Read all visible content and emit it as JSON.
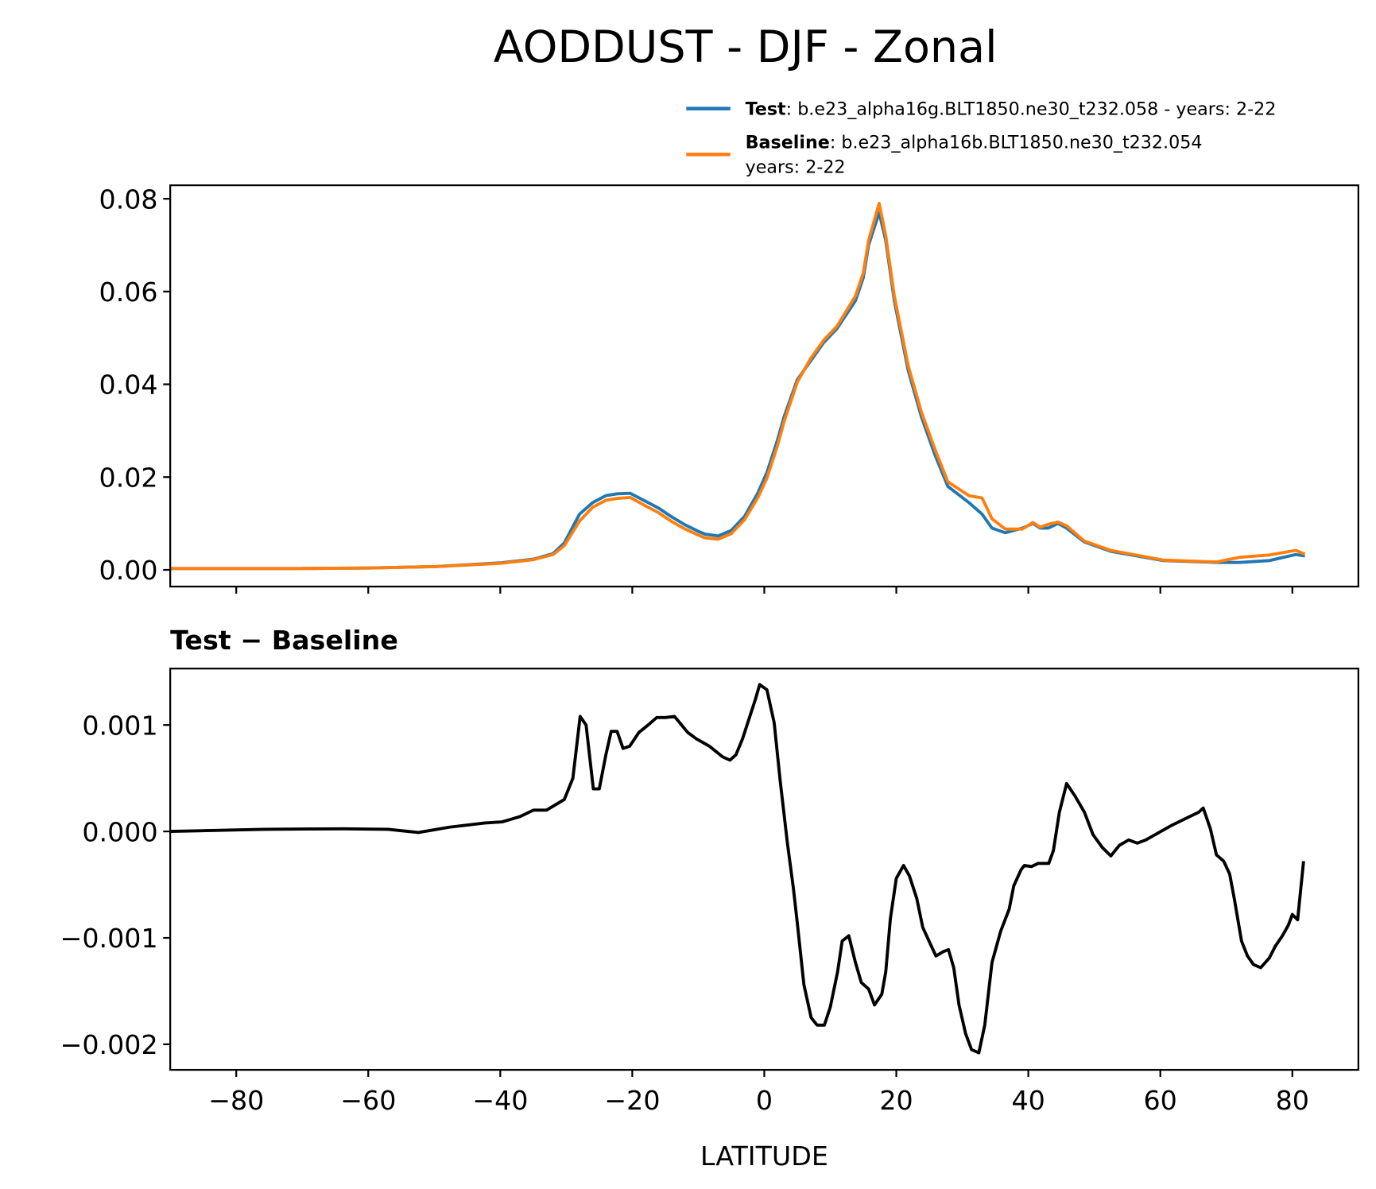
{
  "chart_data": [
    {
      "type": "line",
      "title": "AODDUST - DJF - Zonal",
      "x": [
        -90,
        -80,
        -70,
        -60,
        -50,
        -40,
        -35,
        -32,
        -30.3,
        -28,
        -26,
        -24,
        -22.3,
        -20.3,
        -18,
        -16,
        -14,
        -12,
        -10,
        -9,
        -7,
        -5,
        -3,
        -1,
        0.4,
        2,
        3,
        5,
        7,
        9,
        11,
        13.8,
        15,
        15.8,
        17.4,
        18.4,
        19.7,
        21.8,
        23.8,
        25.8,
        27.8,
        31,
        33,
        34.5,
        36.5,
        39.1,
        40.7,
        41.8,
        43,
        44.5,
        45.8,
        48.5,
        52.5,
        60.5,
        68.5,
        72,
        76.5,
        80.5,
        81.9
      ],
      "series": [
        {
          "name": "Test",
          "label_lines": [
            ": b.e23_alpha16g.BLT1850.ne30_t232.058 - years: 2-22"
          ],
          "color": "#1f77b4",
          "values": [
            0.0003,
            0.0003,
            0.0003,
            0.0004,
            0.0007,
            0.0015,
            0.0023,
            0.0035,
            0.0058,
            0.012,
            0.0145,
            0.016,
            0.0164,
            0.0165,
            0.0148,
            0.0133,
            0.0114,
            0.0097,
            0.0083,
            0.0077,
            0.0073,
            0.0085,
            0.0115,
            0.0165,
            0.021,
            0.028,
            0.033,
            0.041,
            0.045,
            0.049,
            0.052,
            0.058,
            0.063,
            0.07,
            0.077,
            0.071,
            0.058,
            0.043,
            0.033,
            0.025,
            0.018,
            0.0145,
            0.012,
            0.009,
            0.008,
            0.009,
            0.01,
            0.009,
            0.009,
            0.01,
            0.009,
            0.006,
            0.004,
            0.002,
            0.0016,
            0.0016,
            0.002,
            0.0033,
            0.003
          ]
        },
        {
          "name": "Baseline",
          "label_lines": [
            ": b.e23_alpha16b.BLT1850.ne30_t232.054",
            "years: 2-22"
          ],
          "color": "#ff7f0e",
          "values": [
            0.0003,
            0.0003,
            0.0003,
            0.0004,
            0.0007,
            0.0014,
            0.0022,
            0.0033,
            0.0052,
            0.0105,
            0.0135,
            0.015,
            0.0154,
            0.0156,
            0.0138,
            0.0123,
            0.0104,
            0.0088,
            0.0075,
            0.0069,
            0.0066,
            0.0078,
            0.0108,
            0.0155,
            0.0198,
            0.0268,
            0.032,
            0.0405,
            0.0455,
            0.0495,
            0.0525,
            0.059,
            0.064,
            0.071,
            0.079,
            0.072,
            0.059,
            0.044,
            0.034,
            0.0262,
            0.019,
            0.016,
            0.0155,
            0.011,
            0.0088,
            0.0088,
            0.0102,
            0.0092,
            0.0098,
            0.0103,
            0.0095,
            0.0062,
            0.0042,
            0.0021,
            0.0017,
            0.0027,
            0.0032,
            0.0042,
            0.0034
          ]
        }
      ],
      "xlim": [
        -90,
        90
      ],
      "xticks": [
        {
          "value": -80,
          "label": "−80"
        },
        {
          "value": -60,
          "label": "−60"
        },
        {
          "value": -40,
          "label": "−40"
        },
        {
          "value": -20,
          "label": "−20"
        },
        0,
        20,
        40,
        60,
        80
      ],
      "ylim": [
        -0.0036,
        0.0829
      ],
      "yticks": [
        {
          "value": 0,
          "label": "0.00"
        },
        0.02,
        0.04,
        0.06,
        0.08
      ],
      "legend": "upper right"
    },
    {
      "type": "line",
      "subtitle": "Test − Baseline",
      "xlabel": "LATITUDE",
      "x": [
        -90,
        -75.7,
        -63.7,
        -57,
        -52.4,
        -47.7,
        -42.3,
        -39.7,
        -37,
        -35,
        -33,
        -30.3,
        -29,
        -27.9,
        -27,
        -25.9,
        -25,
        -24,
        -23.2,
        -22.3,
        -21.4,
        -20.4,
        -19,
        -17.6,
        -16.3,
        -15,
        -13.6,
        -11.6,
        -10.3,
        -8.3,
        -6.3,
        -5.2,
        -4.3,
        -3.3,
        -2.3,
        -1.3,
        -0.7,
        0.4,
        1.5,
        2.4,
        3.5,
        4.4,
        5,
        6,
        7.1,
        8,
        9.1,
        10,
        11.1,
        11.8,
        12.8,
        13.8,
        14.7,
        15.8,
        16.7,
        17.8,
        18.4,
        19.1,
        20,
        21.1,
        22,
        23.1,
        24,
        25.1,
        26,
        27.1,
        27.9,
        28.7,
        29.5,
        30.5,
        31.4,
        32.5,
        33.4,
        34.5,
        35.8,
        37.1,
        37.8,
        38.9,
        39.4,
        40.5,
        41.5,
        43.1,
        43.8,
        44.7,
        45.8,
        47.1,
        48.5,
        49.8,
        51.2,
        52.5,
        53.8,
        55.2,
        56.5,
        57.8,
        59.8,
        61.8,
        63.8,
        65.8,
        66.5,
        67.6,
        68.5,
        69.6,
        70.5,
        71.2,
        72.3,
        73.2,
        74.1,
        75.2,
        76.5,
        77.4,
        78.5,
        79.4,
        80,
        80.8,
        81.7
      ],
      "series": [
        {
          "name": "Test − Baseline",
          "color": "#000000",
          "values": [
            0,
            2e-05,
            2.5e-05,
            2e-05,
            -1e-05,
            4e-05,
            8e-05,
            9e-05,
            0.00014,
            0.0002,
            0.0002,
            0.0003,
            0.0005,
            0.00108,
            0.001,
            0.0004,
            0.0004,
            0.00072,
            0.00094,
            0.00094,
            0.00078,
            0.0008,
            0.00093,
            0.001,
            0.00107,
            0.00107,
            0.00108,
            0.00093,
            0.00087,
            0.0008,
            0.0007,
            0.00067,
            0.00072,
            0.00087,
            0.00106,
            0.00125,
            0.00138,
            0.00133,
            0.00102,
            0.00048,
            -0.00011,
            -0.00053,
            -0.00086,
            -0.00144,
            -0.00175,
            -0.00182,
            -0.00182,
            -0.00165,
            -0.00132,
            -0.00103,
            -0.00098,
            -0.00123,
            -0.00142,
            -0.00148,
            -0.00163,
            -0.00153,
            -0.00132,
            -0.00082,
            -0.00044,
            -0.00032,
            -0.00042,
            -0.00063,
            -0.0009,
            -0.00105,
            -0.00117,
            -0.00113,
            -0.00111,
            -0.00128,
            -0.00163,
            -0.0019,
            -0.00205,
            -0.00208,
            -0.00182,
            -0.00123,
            -0.00094,
            -0.00073,
            -0.00051,
            -0.00036,
            -0.00032,
            -0.00033,
            -0.0003,
            -0.0003,
            -0.00018,
            0.00018,
            0.00045,
            0.00033,
            0.00018,
            -3e-05,
            -0.00015,
            -0.00023,
            -0.00013,
            -8e-05,
            -0.00011,
            -8e-05,
            -1e-05,
            6e-05,
            0.00012,
            0.00018,
            0.00022,
            2e-05,
            -0.00022,
            -0.00028,
            -0.0004,
            -0.00063,
            -0.00103,
            -0.00117,
            -0.00125,
            -0.00128,
            -0.00119,
            -0.00108,
            -0.00098,
            -0.00088,
            -0.00078,
            -0.00083,
            -0.00028
          ]
        }
      ],
      "xlim": [
        -90,
        90
      ],
      "xticks": [
        {
          "value": -80,
          "label": "−80"
        },
        {
          "value": -60,
          "label": "−60"
        },
        {
          "value": -40,
          "label": "−40"
        },
        {
          "value": -20,
          "label": "−20"
        },
        0,
        20,
        40,
        60,
        80
      ],
      "ylim": [
        -0.00224,
        0.00153
      ],
      "yticks": [
        {
          "value": -0.002,
          "label": "−0.002"
        },
        {
          "value": -0.001,
          "label": "−0.001"
        },
        {
          "value": 0,
          "label": "0.000"
        },
        0.001
      ]
    }
  ]
}
